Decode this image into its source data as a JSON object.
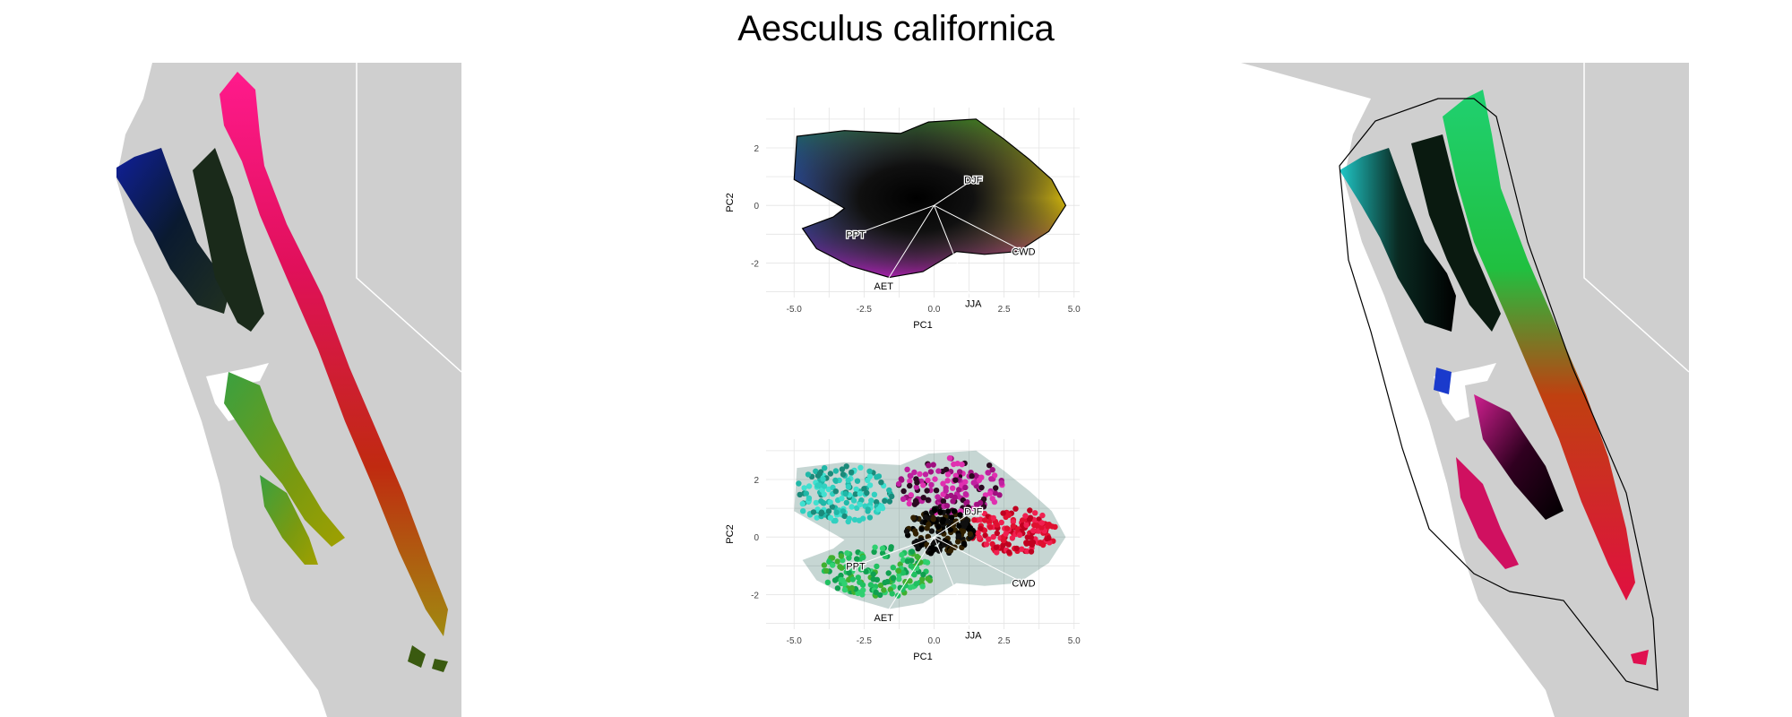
{
  "figure": {
    "title": "Aesculus californica"
  },
  "colors": {
    "land": "#cfcfcf",
    "background": "#ffffff",
    "range_outline": "#000000"
  },
  "chart_data": [
    {
      "type": "scatter",
      "panel": "pca-top",
      "xlabel": "PC1",
      "ylabel": "PC2",
      "xlim": [
        -6,
        5.2
      ],
      "ylim": [
        -3.2,
        3.4
      ],
      "xticks": [
        -5.0,
        -2.5,
        0.0,
        2.5,
        5.0
      ],
      "xtick_labels": [
        "-5.0",
        "-2.5",
        "0.0",
        "2.5",
        "5.0"
      ],
      "yticks": [
        -2,
        0,
        2
      ],
      "ytick_labels": [
        "-2",
        "0",
        "2"
      ],
      "grid": true,
      "color_encoding": "continuous RGB color wheel over PC1/PC2 (blue upper-left, yellow right, magenta lower-left, black center)",
      "loadings": [
        {
          "label": "DJF",
          "x": 1.4,
          "y": 0.9
        },
        {
          "label": "PPT",
          "x": -2.8,
          "y": -1.0
        },
        {
          "label": "AET",
          "x": -1.8,
          "y": -2.8
        },
        {
          "label": "JJA",
          "x": 1.4,
          "y": -3.4
        },
        {
          "label": "CWD",
          "x": 3.2,
          "y": -1.6
        }
      ],
      "loading_origin": [
        0.0,
        0.0
      ]
    },
    {
      "type": "scatter",
      "panel": "pca-bottom",
      "xlabel": "PC1",
      "ylabel": "PC2",
      "xlim": [
        -6,
        5.2
      ],
      "ylim": [
        -3.2,
        3.4
      ],
      "xticks": [
        -5.0,
        -2.5,
        0.0,
        2.5,
        5.0
      ],
      "xtick_labels": [
        "-5.0",
        "-2.5",
        "0.0",
        "2.5",
        "5.0"
      ],
      "yticks": [
        -2,
        0,
        2
      ],
      "ytick_labels": [
        "-2",
        "0",
        "2"
      ],
      "grid": true,
      "color_encoding": "clusters colored cyan/teal (upper-left), magenta/pink (upper-right), red (right), green (lower-left), black (center)",
      "loadings": [
        {
          "label": "DJF",
          "x": 1.4,
          "y": 0.9
        },
        {
          "label": "PPT",
          "x": -2.8,
          "y": -1.0
        },
        {
          "label": "AET",
          "x": -1.8,
          "y": -2.8
        },
        {
          "label": "JJA",
          "x": 1.4,
          "y": -3.4
        },
        {
          "label": "CWD",
          "x": 3.2,
          "y": -1.6
        }
      ],
      "loading_origin": [
        0.0,
        0.0
      ]
    }
  ]
}
